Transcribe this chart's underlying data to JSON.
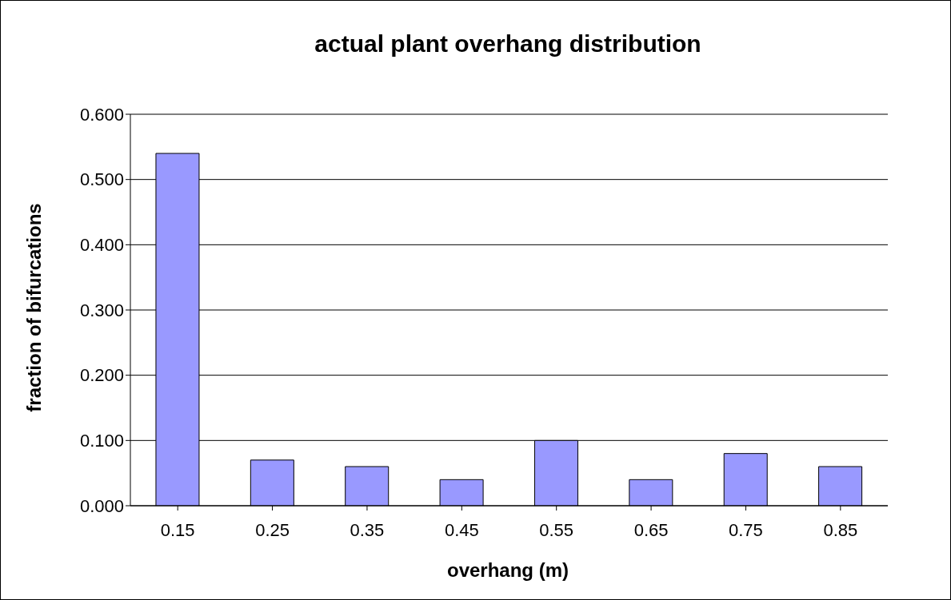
{
  "chart_data": {
    "type": "bar",
    "title": "actual plant overhang distribution",
    "xlabel": "overhang (m)",
    "ylabel": "fraction of bifurcations",
    "categories": [
      "0.15",
      "0.25",
      "0.35",
      "0.45",
      "0.55",
      "0.65",
      "0.75",
      "0.85"
    ],
    "values": [
      0.54,
      0.07,
      0.06,
      0.04,
      0.1,
      0.04,
      0.08,
      0.06
    ],
    "color": "#9999ff",
    "ylim": [
      0,
      0.6
    ],
    "yticks": [
      {
        "value": 0,
        "label": "0.000"
      },
      {
        "value": 0.1,
        "label": "0.100"
      },
      {
        "value": 0.2,
        "label": "0.200"
      },
      {
        "value": 0.3,
        "label": "0.300"
      },
      {
        "value": 0.4,
        "label": "0.400"
      },
      {
        "value": 0.5,
        "label": "0.500"
      },
      {
        "value": 0.6,
        "label": "0.600"
      }
    ],
    "grid": "y",
    "legend": false
  }
}
